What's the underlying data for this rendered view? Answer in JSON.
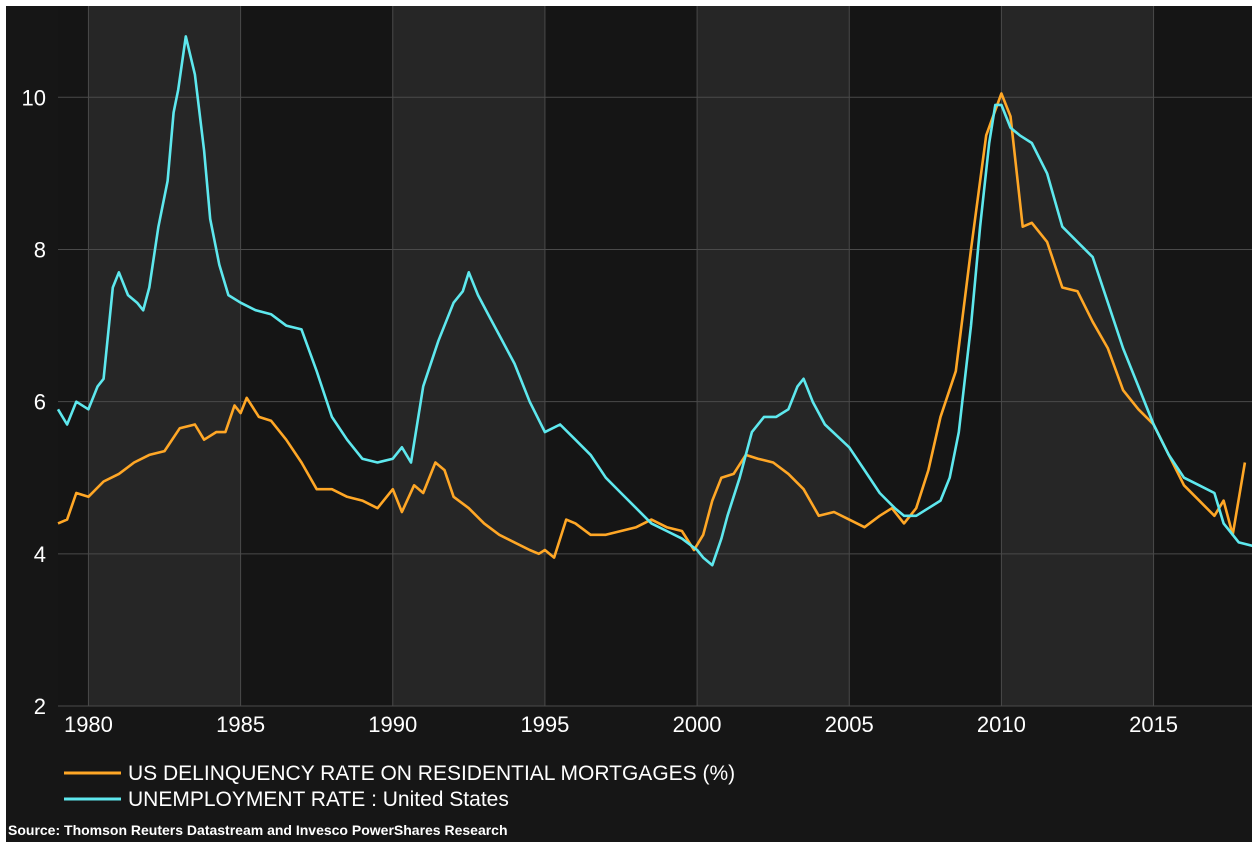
{
  "chart_data": {
    "type": "line",
    "title": "",
    "xlabel": "",
    "ylabel": "",
    "xlim": [
      1979,
      2018.3
    ],
    "ylim": [
      2,
      11.2
    ],
    "grid": true,
    "legend_position": "bottom-left",
    "x_ticks": [
      1980,
      1985,
      1990,
      1995,
      2000,
      2005,
      2010,
      2015
    ],
    "x_tick_labels": [
      "1980",
      "1985",
      "1990",
      "1995",
      "2000",
      "2005",
      "2010",
      "2015"
    ],
    "y_ticks": [
      2,
      4,
      6,
      8,
      10
    ],
    "y_tick_labels": [
      "2",
      "4",
      "6",
      "8",
      "10"
    ],
    "series": [
      {
        "name": "US DELINQUENCY RATE ON RESIDENTIAL MORTGAGES (%)",
        "color": "#ffa726",
        "x": [
          1979.0,
          1979.3,
          1979.6,
          1980.0,
          1980.5,
          1981.0,
          1981.5,
          1982.0,
          1982.5,
          1983.0,
          1983.5,
          1983.8,
          1984.2,
          1984.5,
          1984.8,
          1985.0,
          1985.2,
          1985.6,
          1986.0,
          1986.5,
          1987.0,
          1987.5,
          1988.0,
          1988.5,
          1989.0,
          1989.5,
          1990.0,
          1990.3,
          1990.7,
          1991.0,
          1991.4,
          1991.7,
          1992.0,
          1992.5,
          1993.0,
          1993.5,
          1994.0,
          1994.5,
          1994.8,
          1995.0,
          1995.3,
          1995.7,
          1996.0,
          1996.5,
          1997.0,
          1997.5,
          1998.0,
          1998.5,
          1999.0,
          1999.5,
          1999.9,
          2000.2,
          2000.5,
          2000.8,
          2001.2,
          2001.6,
          2002.0,
          2002.5,
          2003.0,
          2003.5,
          2004.0,
          2004.5,
          2005.0,
          2005.5,
          2006.0,
          2006.4,
          2006.8,
          2007.2,
          2007.6,
          2008.0,
          2008.5,
          2009.0,
          2009.5,
          2010.0,
          2010.3,
          2010.7,
          2011.0,
          2011.5,
          2012.0,
          2012.5,
          2013.0,
          2013.5,
          2014.0,
          2014.5,
          2015.0,
          2015.5,
          2016.0,
          2016.5,
          2017.0,
          2017.3,
          2017.6,
          2018.0
        ],
        "values": [
          4.4,
          4.45,
          4.8,
          4.75,
          4.95,
          5.05,
          5.2,
          5.3,
          5.35,
          5.65,
          5.7,
          5.5,
          5.6,
          5.6,
          5.95,
          5.85,
          6.05,
          5.8,
          5.75,
          5.5,
          5.2,
          4.85,
          4.85,
          4.75,
          4.7,
          4.6,
          4.85,
          4.55,
          4.9,
          4.8,
          5.2,
          5.1,
          4.75,
          4.6,
          4.4,
          4.25,
          4.15,
          4.05,
          4.0,
          4.05,
          3.95,
          4.45,
          4.4,
          4.25,
          4.25,
          4.3,
          4.35,
          4.45,
          4.35,
          4.3,
          4.05,
          4.25,
          4.7,
          5.0,
          5.05,
          5.3,
          5.25,
          5.2,
          5.05,
          4.85,
          4.5,
          4.55,
          4.45,
          4.35,
          4.5,
          4.6,
          4.4,
          4.6,
          5.1,
          5.8,
          6.4,
          8.0,
          9.5,
          10.05,
          9.75,
          8.3,
          8.35,
          8.1,
          7.5,
          7.45,
          7.05,
          6.7,
          6.15,
          5.9,
          5.7,
          5.3,
          4.9,
          4.7,
          4.5,
          4.7,
          4.25,
          5.2
        ]
      },
      {
        "name": "UNEMPLOYMENT RATE : United States",
        "color": "#5ee8ee",
        "x": [
          1979.0,
          1979.3,
          1979.6,
          1980.0,
          1980.3,
          1980.5,
          1980.8,
          1981.0,
          1981.3,
          1981.6,
          1981.8,
          1982.0,
          1982.3,
          1982.6,
          1982.8,
          1982.95,
          1983.2,
          1983.5,
          1983.8,
          1984.0,
          1984.3,
          1984.6,
          1985.0,
          1985.5,
          1986.0,
          1986.5,
          1987.0,
          1987.5,
          1988.0,
          1988.5,
          1989.0,
          1989.5,
          1990.0,
          1990.3,
          1990.6,
          1991.0,
          1991.5,
          1992.0,
          1992.3,
          1992.5,
          1992.8,
          1993.2,
          1993.6,
          1994.0,
          1994.5,
          1995.0,
          1995.5,
          1996.0,
          1996.5,
          1997.0,
          1997.5,
          1998.0,
          1998.5,
          1999.0,
          1999.5,
          2000.0,
          2000.2,
          2000.5,
          2000.8,
          2001.0,
          2001.4,
          2001.8,
          2002.2,
          2002.6,
          2003.0,
          2003.3,
          2003.5,
          2003.8,
          2004.2,
          2004.6,
          2005.0,
          2005.5,
          2006.0,
          2006.5,
          2006.8,
          2007.2,
          2007.6,
          2008.0,
          2008.3,
          2008.6,
          2009.0,
          2009.3,
          2009.6,
          2009.8,
          2010.0,
          2010.3,
          2010.6,
          2011.0,
          2011.5,
          2012.0,
          2012.5,
          2013.0,
          2013.5,
          2014.0,
          2014.5,
          2015.0,
          2015.5,
          2016.0,
          2016.5,
          2017.0,
          2017.3,
          2017.5,
          2017.8,
          2018.3
        ],
        "values": [
          5.9,
          5.7,
          6.0,
          5.9,
          6.2,
          6.3,
          7.5,
          7.7,
          7.4,
          7.3,
          7.2,
          7.5,
          8.3,
          8.9,
          9.8,
          10.1,
          10.8,
          10.3,
          9.3,
          8.4,
          7.8,
          7.4,
          7.3,
          7.2,
          7.15,
          7.0,
          6.95,
          6.4,
          5.8,
          5.5,
          5.25,
          5.2,
          5.25,
          5.4,
          5.2,
          6.2,
          6.8,
          7.3,
          7.45,
          7.7,
          7.4,
          7.1,
          6.8,
          6.5,
          6.0,
          5.6,
          5.7,
          5.5,
          5.3,
          5.0,
          4.8,
          4.6,
          4.4,
          4.3,
          4.2,
          4.05,
          3.95,
          3.85,
          4.2,
          4.5,
          5.0,
          5.6,
          5.8,
          5.8,
          5.9,
          6.2,
          6.3,
          6.0,
          5.7,
          5.55,
          5.4,
          5.1,
          4.8,
          4.6,
          4.5,
          4.5,
          4.6,
          4.7,
          5.0,
          5.6,
          7.0,
          8.3,
          9.4,
          9.9,
          9.9,
          9.6,
          9.5,
          9.4,
          9.0,
          8.3,
          8.1,
          7.9,
          7.3,
          6.7,
          6.2,
          5.7,
          5.3,
          5.0,
          4.9,
          4.8,
          4.4,
          4.3,
          4.15,
          4.1
        ]
      }
    ],
    "source": "Source: Thomson Reuters Datastream and Invesco PowerShares Research"
  }
}
